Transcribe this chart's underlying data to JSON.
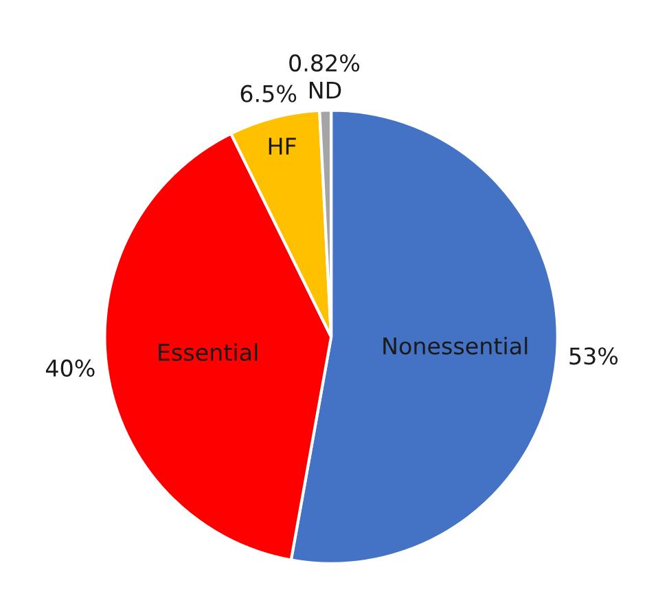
{
  "chart_data": {
    "type": "pie",
    "categories": [
      "Nonessential",
      "Essential",
      "HF",
      "ND"
    ],
    "values": [
      53,
      40,
      6.5,
      0.82
    ],
    "colors": [
      "#4472c4",
      "#ff0000",
      "#ffc000",
      "#a5a5a5"
    ],
    "value_labels": [
      "53%",
      "40%",
      "6.5%",
      "0.82%"
    ]
  }
}
